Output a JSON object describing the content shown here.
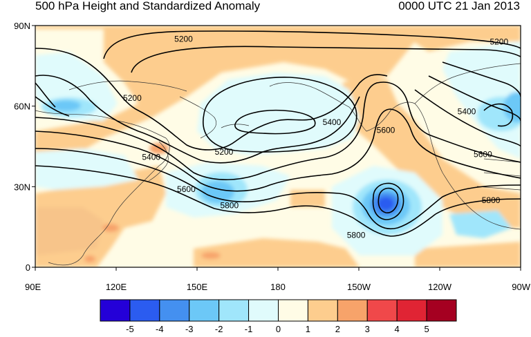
{
  "header": {
    "title": "500 hPa Height and Standardized Anomaly",
    "valid_time": "0000 UTC 21 Jan 2013"
  },
  "map": {
    "region": "North Pacific, 0–90N, 90E–90W",
    "y_axis": {
      "ticks": [
        {
          "lat": 90,
          "label": "90N"
        },
        {
          "lat": 60,
          "label": "60N"
        },
        {
          "lat": 30,
          "label": "30N"
        },
        {
          "lat": 0,
          "label": "0"
        }
      ]
    },
    "x_axis": {
      "ticks": [
        {
          "lon": 90,
          "label": "90E"
        },
        {
          "lon": 120,
          "label": "120E"
        },
        {
          "lon": 150,
          "label": "150E"
        },
        {
          "lon": 180,
          "label": "180"
        },
        {
          "lon": 210,
          "label": "150W"
        },
        {
          "lon": 240,
          "label": "120W"
        },
        {
          "lon": 270,
          "label": "90W"
        }
      ]
    },
    "contour_labels": [
      {
        "text": "5200",
        "lon": 262,
        "lat": 84
      },
      {
        "text": "5200",
        "lon": 145,
        "lat": 85
      },
      {
        "text": "5200",
        "lon": 126,
        "lat": 63
      },
      {
        "text": "5400",
        "lon": 133,
        "lat": 41
      },
      {
        "text": "5200",
        "lon": 160,
        "lat": 43
      },
      {
        "text": "5400",
        "lon": 200,
        "lat": 54
      },
      {
        "text": "5600",
        "lon": 220,
        "lat": 51
      },
      {
        "text": "5400",
        "lon": 250,
        "lat": 58
      },
      {
        "text": "5600",
        "lon": 256,
        "lat": 42
      },
      {
        "text": "5600",
        "lon": 146,
        "lat": 29
      },
      {
        "text": "5800",
        "lon": 162,
        "lat": 23
      },
      {
        "text": "5800",
        "lon": 209,
        "lat": 12
      },
      {
        "text": "5800",
        "lon": 259,
        "lat": 25
      }
    ]
  },
  "colorbar": {
    "colors": [
      "#2400d8",
      "#2b5cf0",
      "#4490f0",
      "#6cc8f7",
      "#a0e6fb",
      "#e0fbfc",
      "#fffce6",
      "#fdcd8e",
      "#f7a36a",
      "#f0484a",
      "#e02434",
      "#a50021"
    ],
    "labels": [
      "-5",
      "-4",
      "-3",
      "-2",
      "-1",
      "0",
      "1",
      "2",
      "3",
      "4",
      "5"
    ]
  }
}
